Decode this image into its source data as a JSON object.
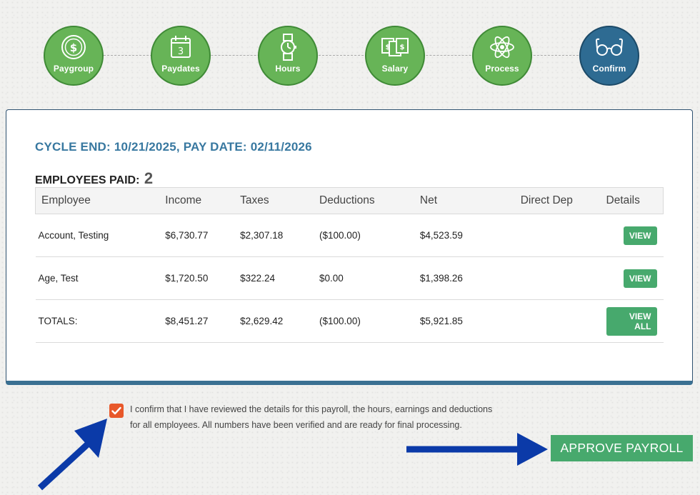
{
  "steps": [
    {
      "label": "Paygroup",
      "icon": "dollar-coin-icon",
      "state": "complete"
    },
    {
      "label": "Paydates",
      "icon": "calendar-icon",
      "state": "complete",
      "calendar_day": "3"
    },
    {
      "label": "Hours",
      "icon": "wristwatch-icon",
      "state": "complete"
    },
    {
      "label": "Salary",
      "icon": "money-bills-icon",
      "state": "complete"
    },
    {
      "label": "Process",
      "icon": "atom-icon",
      "state": "complete"
    },
    {
      "label": "Confirm",
      "icon": "eyeglasses-icon",
      "state": "active"
    }
  ],
  "colors": {
    "step_complete": "#67b457",
    "step_active": "#2e6b92",
    "title_blue": "#3878a0",
    "button_green": "#47a96d",
    "checkbox_orange": "#e8582a",
    "arrow_blue": "#0b3aa8"
  },
  "summary": {
    "cycle_title": "CYCLE END: 10/21/2025, PAY DATE: 02/11/2026",
    "employees_paid_label": "EMPLOYEES PAID:",
    "employees_paid_count": "2"
  },
  "table": {
    "headers": [
      "Employee",
      "Income",
      "Taxes",
      "Deductions",
      "Net",
      "Direct Dep",
      "Details"
    ],
    "rows": [
      {
        "employee": "Account, Testing",
        "income": "$6,730.77",
        "taxes": "$2,307.18",
        "deductions": "($100.00)",
        "net": "$4,523.59",
        "direct_dep": "",
        "action": "VIEW"
      },
      {
        "employee": "Age, Test",
        "income": "$1,720.50",
        "taxes": "$322.24",
        "deductions": "$0.00",
        "net": "$1,398.26",
        "direct_dep": "",
        "action": "VIEW"
      }
    ],
    "totals": {
      "label": "TOTALS:",
      "income": "$8,451.27",
      "taxes": "$2,629.42",
      "deductions": "($100.00)",
      "net": "$5,921.85",
      "direct_dep": "",
      "action": "VIEW ALL"
    }
  },
  "confirm": {
    "checked": true,
    "line1": "I confirm that I have reviewed the details for this payroll, the hours, earnings and deductions",
    "line2": "for all employees. All numbers have been verified and are ready for final processing."
  },
  "approve_button": "APPROVE PAYROLL"
}
